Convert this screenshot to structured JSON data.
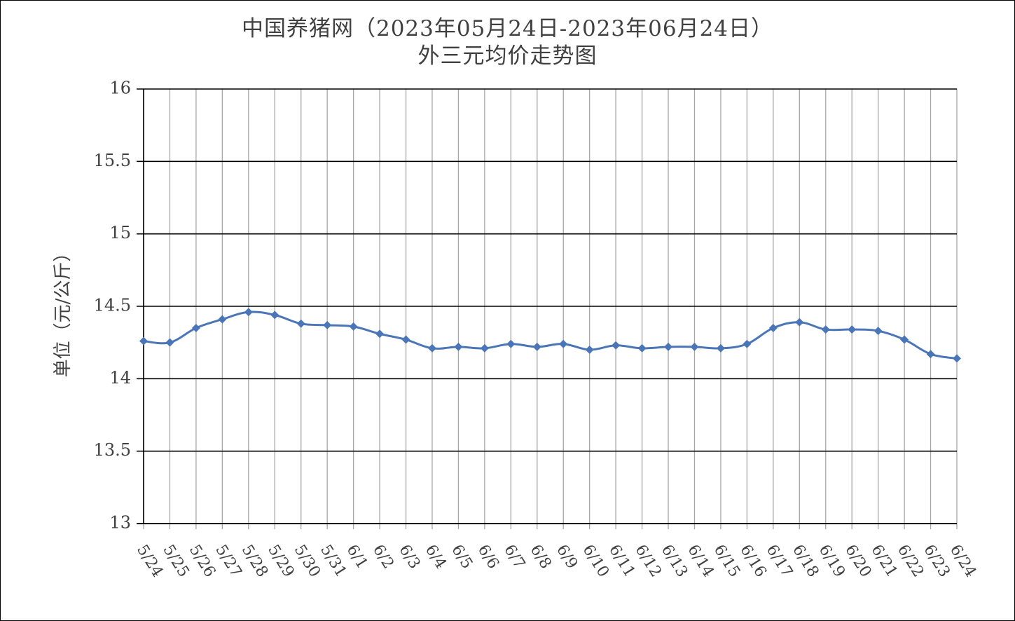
{
  "chart_data": {
    "type": "line",
    "title_line1": "中国养猪网（2023年05月24日-2023年06月24日）",
    "title_line2": "外三元均价走势图",
    "ylabel": "单位（元/公斤）",
    "xlabel": "",
    "ylim": [
      13,
      16
    ],
    "yticks": [
      13,
      13.5,
      14,
      14.5,
      15,
      15.5,
      16
    ],
    "ytick_labels": [
      "13",
      "13.5",
      "14",
      "14.5",
      "15",
      "15.5",
      "16"
    ],
    "categories": [
      "5/24",
      "5/25",
      "5/26",
      "5/27",
      "5/28",
      "5/29",
      "5/30",
      "5/31",
      "6/1",
      "6/2",
      "6/3",
      "6/4",
      "6/5",
      "6/6",
      "6/7",
      "6/8",
      "6/9",
      "6/10",
      "6/11",
      "6/12",
      "6/13",
      "6/14",
      "6/15",
      "6/16",
      "6/17",
      "6/18",
      "6/19",
      "6/20",
      "6/21",
      "6/22",
      "6/23",
      "6/24"
    ],
    "series": [
      {
        "values": [
          14.26,
          14.25,
          14.35,
          14.41,
          14.46,
          14.44,
          14.38,
          14.37,
          14.36,
          14.31,
          14.27,
          14.21,
          14.22,
          14.21,
          14.24,
          14.22,
          14.24,
          14.2,
          14.23,
          14.21,
          14.22,
          14.22,
          14.21,
          14.24,
          14.35,
          14.39,
          14.34,
          14.34,
          14.33,
          14.27,
          14.17,
          14.14
        ],
        "color": "#4a76b8"
      }
    ],
    "grid": true,
    "legend": "none",
    "marker": "diamond",
    "smooth": true
  }
}
